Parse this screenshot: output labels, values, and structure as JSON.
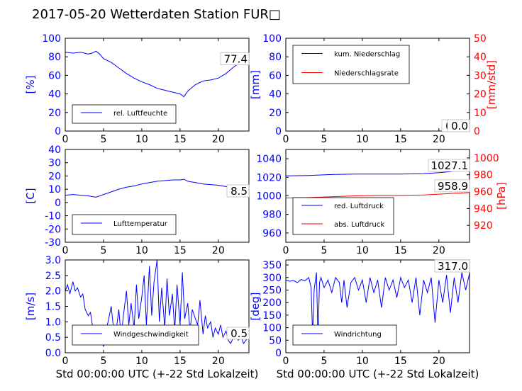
{
  "title": "2017-05-20 Wetterdaten Station FUR□",
  "colors": {
    "blue": "#0000ff",
    "red": "#ff0000",
    "black": "#000000"
  },
  "chart_data": [
    {
      "id": "humidity",
      "type": "line",
      "ylabel": "[%]",
      "ylim": [
        0,
        100
      ],
      "yticks": [
        0,
        20,
        40,
        60,
        80,
        100
      ],
      "xlim": [
        0,
        24
      ],
      "xticks": [
        0,
        5,
        10,
        15,
        20
      ],
      "legend": [
        "rel. Luftfeuchte"
      ],
      "legend_position": "lower-left",
      "last_value_label": "77.4",
      "series": [
        {
          "name": "rel. Luftfeuchte",
          "axis": "left",
          "color": "#0000ff",
          "x": [
            0,
            1,
            2,
            2.5,
            3,
            3.5,
            4,
            4.5,
            5,
            6,
            7,
            8,
            9,
            10,
            11,
            12,
            13,
            14,
            15,
            15.5,
            16,
            17,
            18,
            19,
            20,
            21,
            22,
            23,
            24
          ],
          "y": [
            85,
            84,
            85,
            84,
            83,
            84,
            86,
            83,
            78,
            74,
            68,
            62,
            57,
            53,
            50,
            46,
            44,
            42,
            40,
            37,
            43,
            50,
            54,
            55,
            57,
            62,
            69,
            75,
            77.4
          ]
        }
      ]
    },
    {
      "id": "precip",
      "type": "line",
      "ylabel": "[mm]",
      "ylabel_right": "[mm/std]",
      "ylim": [
        0,
        100
      ],
      "yticks": [
        0,
        20,
        40,
        60,
        80,
        100
      ],
      "ylim_right": [
        0,
        50
      ],
      "yticks_right": [
        0,
        10,
        20,
        30,
        40,
        50
      ],
      "xlim": [
        0,
        24
      ],
      "xticks": [
        0,
        5,
        10,
        15,
        20
      ],
      "legend": [
        "kum. Niederschlag",
        "Niederschlagsrate"
      ],
      "legend_position": "upper-left",
      "last_value_label": "0.0",
      "last_value_label_2": "0.0",
      "series": [
        {
          "name": "kum. Niederschlag",
          "axis": "left",
          "color": "#0000ff",
          "x": [
            0,
            24
          ],
          "y": [
            0,
            0
          ]
        },
        {
          "name": "Niederschlagsrate",
          "axis": "right",
          "color": "#ff0000",
          "x": [
            0,
            24
          ],
          "y": [
            0,
            0
          ]
        }
      ]
    },
    {
      "id": "temperature",
      "type": "line",
      "ylabel": "[C]",
      "ylim": [
        -30,
        40
      ],
      "yticks": [
        -30,
        -20,
        -10,
        0,
        10,
        20,
        30,
        40
      ],
      "xlim": [
        0,
        24
      ],
      "xticks": [
        0,
        5,
        10,
        15,
        20
      ],
      "legend": [
        "Lufttemperatur"
      ],
      "legend_position": "lower-left",
      "last_value_label": "8.5",
      "series": [
        {
          "name": "Lufttemperatur",
          "axis": "left",
          "color": "#0000ff",
          "x": [
            0,
            1,
            2,
            3,
            4,
            5,
            6,
            7,
            8,
            9,
            10,
            11,
            12,
            13,
            14,
            15,
            15.5,
            16,
            17,
            18,
            19,
            20,
            21,
            22,
            23,
            24
          ],
          "y": [
            5.5,
            6,
            5.5,
            5,
            4,
            6,
            8,
            10,
            11.5,
            12.5,
            14,
            15,
            16,
            16.5,
            17,
            17,
            17.5,
            16,
            15,
            14,
            13.5,
            13,
            12,
            11,
            10,
            8.5
          ]
        }
      ]
    },
    {
      "id": "pressure",
      "type": "line",
      "ylabel_right": "[hPa]",
      "ylim": [
        950,
        1050
      ],
      "yticks": [
        960,
        980,
        1000,
        1020,
        1040
      ],
      "ylim_right": [
        900,
        1010
      ],
      "yticks_right": [
        920,
        940,
        960,
        980,
        1000
      ],
      "xlim": [
        0,
        24
      ],
      "xticks": [
        0,
        5,
        10,
        15,
        20
      ],
      "legend": [
        "red. Luftdruck",
        "abs. Luftdruck"
      ],
      "legend_position": "lower-left",
      "last_value_label": "1027.1",
      "last_value_label_2": "958.9",
      "series": [
        {
          "name": "red. Luftdruck",
          "axis": "left",
          "color": "#0000ff",
          "x": [
            0,
            3,
            6,
            9,
            12,
            15,
            18,
            20,
            22,
            24
          ],
          "y": [
            1021.5,
            1022,
            1023,
            1023.5,
            1023.5,
            1023.5,
            1024,
            1025,
            1026.5,
            1027.1
          ]
        },
        {
          "name": "abs. Luftdruck",
          "axis": "right",
          "color": "#ff0000",
          "x": [
            0,
            3,
            6,
            9,
            12,
            15,
            18,
            20,
            22,
            24
          ],
          "y": [
            952.5,
            953,
            954,
            955,
            955.5,
            955.5,
            956,
            957,
            958,
            958.9
          ]
        }
      ]
    },
    {
      "id": "windspeed",
      "type": "line",
      "ylabel": "[m/s]",
      "xlabel": "Std 00:00:00 UTC (+-22 Std Lokalzeit)",
      "ylim": [
        0,
        3
      ],
      "yticks": [
        0,
        0.5,
        1,
        1.5,
        2,
        2.5,
        3
      ],
      "yticklabels": [
        "0.0",
        "0.5",
        "1.0",
        "1.5",
        "2.0",
        "2.5",
        "3.0"
      ],
      "xlim": [
        0,
        24
      ],
      "xticks": [
        0,
        5,
        10,
        15,
        20
      ],
      "legend": [
        "Windgeschwindigkeit"
      ],
      "legend_position": "lower-left",
      "last_value_label": "0.5",
      "series": [
        {
          "name": "Windgeschwindigkeit",
          "axis": "left",
          "color": "#0000ff",
          "x": [
            0,
            0.3,
            0.6,
            1,
            1.3,
            1.6,
            2,
            2.3,
            2.6,
            3,
            3.3,
            3.6,
            4,
            4.3,
            4.6,
            5,
            5.3,
            5.6,
            6,
            6.3,
            6.6,
            7,
            7.3,
            7.6,
            8,
            8.3,
            8.6,
            9,
            9.3,
            9.6,
            10,
            10.3,
            10.6,
            11,
            11.3,
            11.6,
            12,
            12.3,
            12.6,
            13,
            13.3,
            13.6,
            14,
            14.3,
            14.6,
            15,
            15.3,
            15.6,
            16,
            16.3,
            16.6,
            17,
            17.3,
            17.6,
            18,
            18.3,
            18.6,
            19,
            19.3,
            19.6,
            20,
            20.3,
            20.6,
            21,
            21.3,
            21.6,
            22,
            22.3,
            22.6,
            23,
            23.3,
            23.6,
            24
          ],
          "y": [
            2.0,
            2.2,
            1.9,
            2.3,
            2.0,
            2.1,
            1.8,
            1.9,
            1.4,
            1.2,
            1.3,
            0.8,
            0.6,
            0.3,
            0.5,
            0.2,
            0.7,
            1.0,
            1.5,
            0.8,
            0.6,
            1.4,
            0.5,
            1.2,
            2.0,
            0.9,
            1.6,
            0.8,
            2.2,
            1.1,
            1.8,
            2.5,
            0.9,
            2.8,
            1.2,
            2.3,
            3.0,
            1.0,
            2.1,
            0.8,
            2.4,
            1.2,
            1.9,
            0.7,
            2.2,
            0.9,
            2.6,
            1.1,
            1.6,
            0.7,
            1.4,
            1.1,
            0.9,
            1.7,
            0.6,
            1.2,
            0.8,
            1.0,
            0.5,
            0.8,
            0.6,
            0.9,
            0.5,
            0.7,
            0.4,
            0.3,
            0.5,
            0.6,
            0.4,
            0.5,
            0.3,
            0.4,
            0.5
          ]
        }
      ]
    },
    {
      "id": "winddir",
      "type": "line",
      "ylabel": "[deg]",
      "xlabel": "Std 00:00:00 UTC (+-22 Std Lokalzeit)",
      "ylim": [
        0,
        370
      ],
      "yticks": [
        0,
        50,
        100,
        150,
        200,
        250,
        300,
        350
      ],
      "xlim": [
        0,
        24
      ],
      "xticks": [
        0,
        5,
        10,
        15,
        20
      ],
      "legend": [
        "Windrichtung"
      ],
      "legend_position": "lower-left",
      "last_value_label": "317.0",
      "series": [
        {
          "name": "Windrichtung",
          "axis": "left",
          "color": "#0000ff",
          "x": [
            0,
            0.5,
            1,
            1.5,
            2,
            2.5,
            3,
            3.3,
            3.5,
            3.7,
            4,
            4.2,
            4.4,
            4.6,
            5,
            5.5,
            6,
            6.5,
            7,
            7.3,
            7.6,
            8,
            8.5,
            9,
            9.5,
            10,
            10.5,
            11,
            11.5,
            12,
            12.5,
            13,
            13.5,
            14,
            14.5,
            15,
            15.5,
            16,
            16.5,
            17,
            17.5,
            18,
            18.5,
            19,
            19.5,
            20,
            20.5,
            21,
            21.5,
            22,
            22.5,
            23,
            23.5,
            24
          ],
          "y": [
            290,
            285,
            288,
            280,
            292,
            287,
            300,
            260,
            70,
            250,
            320,
            60,
            280,
            300,
            260,
            290,
            240,
            300,
            280,
            200,
            290,
            180,
            280,
            300,
            250,
            290,
            200,
            300,
            240,
            290,
            180,
            300,
            250,
            290,
            220,
            300,
            260,
            290,
            200,
            300,
            150,
            290,
            240,
            300,
            120,
            290,
            200,
            310,
            160,
            300,
            200,
            320,
            250,
            317
          ]
        }
      ]
    }
  ]
}
